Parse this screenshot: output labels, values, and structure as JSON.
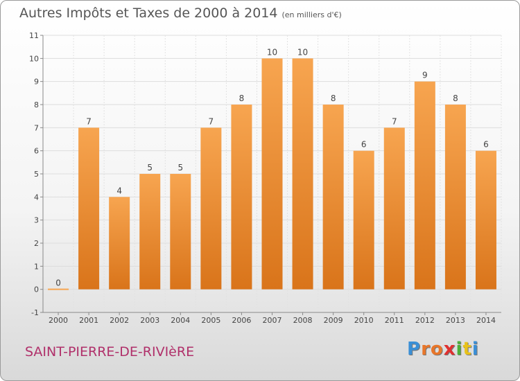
{
  "chart_data": {
    "type": "bar",
    "title": "Autres Impôts et Taxes de 2000 à 2014",
    "subtitle": "(en milliers d'€)",
    "categories": [
      "2000",
      "2001",
      "2002",
      "2003",
      "2004",
      "2005",
      "2006",
      "2007",
      "2008",
      "2009",
      "2010",
      "2011",
      "2012",
      "2013",
      "2014"
    ],
    "values": [
      0,
      7,
      4,
      5,
      5,
      7,
      8,
      10,
      10,
      8,
      6,
      7,
      9,
      8,
      6
    ],
    "ylim": [
      -1,
      11
    ],
    "yticks": [
      -1,
      0,
      1,
      2,
      3,
      4,
      5,
      6,
      7,
      8,
      9,
      10,
      11
    ],
    "xlabel": "",
    "ylabel": "",
    "grid": true,
    "bar_color_light": "#f7a550",
    "bar_color_dark": "#d9741a"
  },
  "footer": {
    "commune": "SAINT-PIERRE-DE-RIVIèRE",
    "logo_letters": [
      "P",
      "r",
      "o",
      "x",
      "i",
      "t",
      "i"
    ],
    "logo_colors": [
      "#3a8fd6",
      "#e8762a",
      "#e8762a",
      "#e03030",
      "#4caf3a",
      "#e8c21a",
      "#3a8fd6"
    ]
  }
}
